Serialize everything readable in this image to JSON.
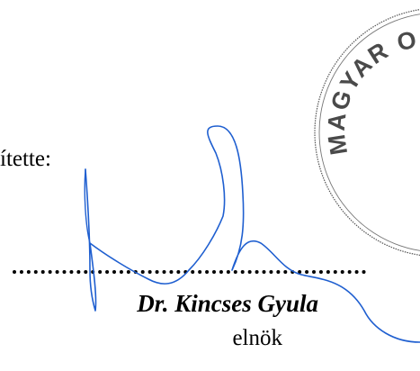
{
  "document": {
    "prepared_label": "ítette:",
    "signatory_name": "Dr. Kincses Gyula",
    "signatory_title": "elnök"
  },
  "stamp": {
    "text": "MAGYAR O",
    "color": "#4a4a4a"
  },
  "signature": {
    "color": "#1f5fd0"
  }
}
